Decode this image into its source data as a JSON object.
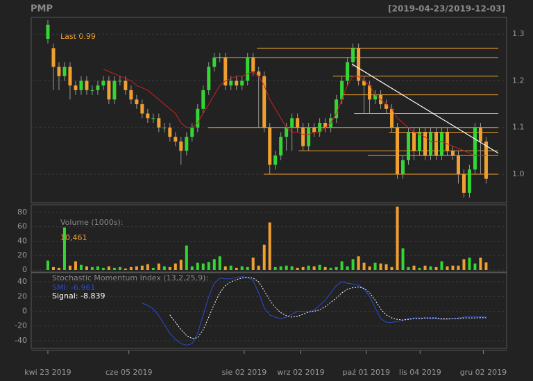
{
  "chart_data": {
    "type": "candlestick",
    "title": "PMP",
    "subtitle": "[2019-04-23/2019-12-03]",
    "last_label": "Last 0.99",
    "up_color": "#33d633",
    "down_color": "#f0a030",
    "sma_color": "#d02020",
    "level_color": "#f0a030",
    "trend_color": "#ffffff",
    "grid": true,
    "xlim": [
      -3.0,
      82.7
    ],
    "xticks": [
      {
        "value": 0,
        "label": "kwi 23 2019"
      },
      {
        "value": 14.6,
        "label": "cze 05 2019"
      },
      {
        "value": 35.4,
        "label": "sie 02 2019"
      },
      {
        "value": 45.6,
        "label": "wrz 02 2019"
      },
      {
        "value": 57.4,
        "label": "paź 01 2019"
      },
      {
        "value": 67.1,
        "label": "lis 04 2019"
      },
      {
        "value": 78.5,
        "label": "gru 02 2019"
      }
    ],
    "ylim": [
      0.939,
      1.336
    ],
    "yticks": [
      {
        "value": 1,
        "label": "1.0"
      },
      1.1,
      1.2,
      1.3
    ],
    "open": [
      1.29,
      1.27,
      1.23,
      1.21,
      1.23,
      1.19,
      1.18,
      1.2,
      1.18,
      1.18,
      1.19,
      1.2,
      1.16,
      1.2,
      1.2,
      1.18,
      1.16,
      1.15,
      1.13,
      1.12,
      1.12,
      1.1,
      1.1,
      1.08,
      1.07,
      1.05,
      1.08,
      1.1,
      1.14,
      1.18,
      1.23,
      1.25,
      1.25,
      1.19,
      1.2,
      1.19,
      1.2,
      1.25,
      1.22,
      1.21,
      1.1,
      1.02,
      1.04,
      1.08,
      1.1,
      1.12,
      1.1,
      1.06,
      1.1,
      1.09,
      1.11,
      1.1,
      1.12,
      1.16,
      1.2,
      1.24,
      1.27,
      1.2,
      1.19,
      1.16,
      1.17,
      1.15,
      1.14,
      1.1,
      1.0,
      1.03,
      1.09,
      1.05,
      1.09,
      1.04,
      1.09,
      1.04,
      1.09,
      1.05,
      1.04,
      1.0,
      0.96,
      1.01,
      1.1,
      1.07
    ],
    "high": [
      1.33,
      1.28,
      1.24,
      1.24,
      1.24,
      1.2,
      1.21,
      1.21,
      1.19,
      1.2,
      1.21,
      1.21,
      1.21,
      1.21,
      1.21,
      1.19,
      1.17,
      1.16,
      1.14,
      1.13,
      1.13,
      1.11,
      1.11,
      1.09,
      1.08,
      1.09,
      1.11,
      1.15,
      1.19,
      1.24,
      1.26,
      1.26,
      1.26,
      1.21,
      1.21,
      1.21,
      1.26,
      1.26,
      1.23,
      1.22,
      1.11,
      1.05,
      1.09,
      1.11,
      1.13,
      1.13,
      1.11,
      1.11,
      1.11,
      1.12,
      1.12,
      1.13,
      1.17,
      1.21,
      1.25,
      1.28,
      1.28,
      1.21,
      1.2,
      1.18,
      1.18,
      1.16,
      1.15,
      1.11,
      1.04,
      1.1,
      1.1,
      1.1,
      1.1,
      1.1,
      1.1,
      1.1,
      1.1,
      1.06,
      1.05,
      1.01,
      1.02,
      1.11,
      1.11,
      1.08
    ],
    "low": [
      1.28,
      1.18,
      1.18,
      1.2,
      1.16,
      1.17,
      1.17,
      1.17,
      1.17,
      1.17,
      1.18,
      1.15,
      1.15,
      1.19,
      1.17,
      1.15,
      1.14,
      1.12,
      1.11,
      1.11,
      1.09,
      1.09,
      1.07,
      1.06,
      1.02,
      1.04,
      1.07,
      1.09,
      1.13,
      1.17,
      1.22,
      1.24,
      1.18,
      1.18,
      1.18,
      1.18,
      1.19,
      1.21,
      1.1,
      1.09,
      1.0,
      1.01,
      1.03,
      1.05,
      1.05,
      1.09,
      1.05,
      1.05,
      1.08,
      1.08,
      1.09,
      1.09,
      1.11,
      1.15,
      1.19,
      1.23,
      1.19,
      1.13,
      1.13,
      1.15,
      1.14,
      1.13,
      1.09,
      0.99,
      0.99,
      1.02,
      1.03,
      1.04,
      1.03,
      1.03,
      1.03,
      1.03,
      1.04,
      1.03,
      0.98,
      0.95,
      0.95,
      1.0,
      1.0,
      0.98
    ],
    "close": [
      1.32,
      1.23,
      1.21,
      1.23,
      1.19,
      1.18,
      1.2,
      1.18,
      1.18,
      1.19,
      1.2,
      1.16,
      1.2,
      1.2,
      1.18,
      1.16,
      1.15,
      1.13,
      1.12,
      1.12,
      1.1,
      1.1,
      1.08,
      1.07,
      1.05,
      1.08,
      1.1,
      1.14,
      1.18,
      1.23,
      1.25,
      1.25,
      1.19,
      1.2,
      1.19,
      1.2,
      1.25,
      1.22,
      1.21,
      1.1,
      1.02,
      1.04,
      1.08,
      1.1,
      1.12,
      1.1,
      1.06,
      1.1,
      1.09,
      1.11,
      1.1,
      1.12,
      1.16,
      1.2,
      1.24,
      1.27,
      1.2,
      1.19,
      1.16,
      1.17,
      1.15,
      1.14,
      1.1,
      1.0,
      1.03,
      1.09,
      1.05,
      1.09,
      1.04,
      1.09,
      1.04,
      1.09,
      1.05,
      1.04,
      1.0,
      0.96,
      1.01,
      1.1,
      1.07,
      0.99
    ],
    "sma": [
      null,
      null,
      null,
      null,
      null,
      null,
      null,
      null,
      null,
      null,
      1.225,
      1.22,
      1.215,
      1.21,
      1.205,
      1.2,
      1.19,
      1.185,
      1.18,
      1.17,
      1.16,
      1.15,
      1.14,
      1.13,
      1.11,
      1.1,
      1.1,
      1.11,
      1.13,
      1.15,
      1.17,
      1.19,
      1.2,
      1.205,
      1.21,
      1.21,
      1.215,
      1.22,
      1.21,
      1.19,
      1.16,
      1.14,
      1.12,
      1.1,
      1.09,
      1.09,
      1.085,
      1.085,
      1.09,
      1.09,
      1.1,
      1.11,
      1.13,
      1.16,
      1.19,
      1.21,
      1.21,
      1.2,
      1.19,
      1.17,
      1.16,
      1.15,
      1.14,
      1.12,
      1.11,
      1.1,
      1.09,
      1.085,
      1.08,
      1.07,
      1.07,
      1.07,
      1.065,
      1.06,
      1.055,
      1.05,
      1.045,
      1.04,
      1.04,
      1.04
    ],
    "levels": [
      {
        "y": 1.27,
        "x": 37.7
      },
      {
        "y": 1.25,
        "x": 30.2
      },
      {
        "y": 1.21,
        "x": 51.4
      },
      {
        "y": 1.17,
        "x": 52.7
      },
      {
        "y": 1.13,
        "x": 55.2
      },
      {
        "y": 1.1,
        "x": 28.9
      },
      {
        "y": 1.09,
        "x": 61.5
      },
      {
        "y": 1.05,
        "x": 45.2
      },
      {
        "y": 1.04,
        "x": 57.7
      },
      {
        "y": 1.0,
        "x": 38.9
      }
    ],
    "level_end": 81.2,
    "trend": {
      "x": [
        54.8,
        81.2
      ],
      "y": [
        1.236,
        1.045
      ]
    },
    "volume": {
      "label": "Volume (1000s):",
      "last_label": "10,461",
      "ylim": [
        -2.9,
        90.6
      ],
      "yticks": [
        0,
        20,
        40,
        60,
        80
      ],
      "values": [
        13,
        4,
        3,
        59,
        6,
        12,
        7,
        5,
        4,
        5,
        3,
        5,
        3,
        4,
        2,
        4,
        5,
        6,
        8,
        3,
        9,
        5,
        4,
        9,
        14,
        34,
        5,
        10,
        9,
        11,
        15,
        19,
        5,
        6,
        3,
        5,
        4,
        17,
        6,
        35,
        66,
        4,
        5,
        6,
        5,
        3,
        4,
        6,
        5,
        7,
        4,
        3,
        4,
        12,
        5,
        15,
        19,
        10,
        5,
        10,
        9,
        8,
        4,
        88,
        30,
        4,
        6,
        3,
        6,
        5,
        4,
        12,
        5,
        6,
        6,
        15,
        17,
        9,
        17,
        10.461
      ]
    },
    "smi": {
      "label": "Stochastic Momentum Index (13,2,25,9):",
      "ylim": [
        -50.4,
        52.3
      ],
      "yticks": [
        -40,
        -20,
        0,
        20,
        40
      ],
      "series": [
        {
          "name": "SMI: -6.961",
          "color": "#2a4bd0",
          "dash": false,
          "values": [
            null,
            null,
            null,
            null,
            null,
            null,
            null,
            null,
            null,
            null,
            null,
            null,
            null,
            null,
            null,
            null,
            null,
            11,
            8,
            3,
            -6,
            -18,
            -30,
            -38,
            -44,
            -46,
            -44,
            -30,
            -5,
            20,
            38,
            45,
            44,
            44,
            46,
            47,
            46,
            42,
            25,
            5,
            -5,
            -8,
            -10,
            -8,
            -4,
            0,
            0,
            -1,
            2,
            8,
            15,
            25,
            35,
            40,
            38,
            37,
            36,
            30,
            20,
            5,
            -10,
            -15,
            -15,
            -14,
            -12,
            -10,
            -9,
            -9,
            -9,
            -10,
            -10,
            -11,
            -11,
            -10,
            -9,
            -8,
            -7,
            -7,
            -7,
            -6.961
          ]
        },
        {
          "name": "Signal: -8.839",
          "color": "#ffffff",
          "dash": true,
          "values": [
            null,
            null,
            null,
            null,
            null,
            null,
            null,
            null,
            null,
            null,
            null,
            null,
            null,
            null,
            null,
            null,
            null,
            null,
            null,
            null,
            null,
            null,
            -5,
            -15,
            -25,
            -33,
            -37,
            -36,
            -25,
            -8,
            10,
            25,
            35,
            40,
            43,
            45,
            46,
            45,
            40,
            28,
            15,
            5,
            -2,
            -6,
            -8,
            -7,
            -4,
            -1,
            0,
            2,
            6,
            12,
            18,
            25,
            30,
            32,
            33,
            31,
            25,
            15,
            3,
            -5,
            -9,
            -11,
            -12,
            -11,
            -10,
            -10,
            -9,
            -9,
            -9,
            -10,
            -10,
            -10,
            -10,
            -9,
            -9,
            -9,
            -8.8,
            -8.839
          ]
        }
      ]
    }
  }
}
